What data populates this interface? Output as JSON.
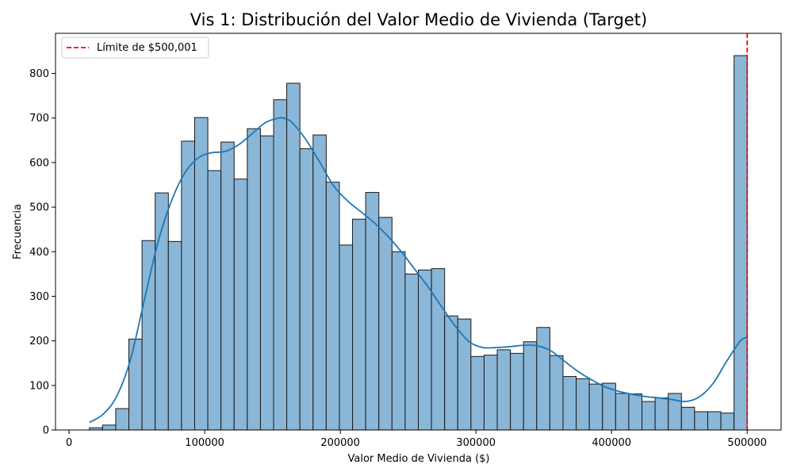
{
  "chart_data": {
    "type": "bar",
    "title": "Vis 1: Distribución del Valor Medio de Vivienda (Target)",
    "xlabel": "Valor Medio de Vivienda ($)",
    "ylabel": "Frecuencia",
    "xlim": [
      -10000,
      525000
    ],
    "ylim": [
      0,
      890
    ],
    "xticks": [
      0,
      100000,
      200000,
      300000,
      400000,
      500000
    ],
    "xtick_labels": [
      "0",
      "100000",
      "200000",
      "300000",
      "400000",
      "500000"
    ],
    "yticks": [
      0,
      100,
      200,
      300,
      400,
      500,
      600,
      700,
      800
    ],
    "ytick_labels": [
      "0",
      "100",
      "200",
      "300",
      "400",
      "500",
      "600",
      "700",
      "800"
    ],
    "bar_color": "#8ab6d8",
    "bar_edge_color": "#1a1a1a",
    "bins": {
      "start": 14999,
      "end": 500001,
      "counts": [
        5,
        11,
        48,
        204,
        425,
        532,
        423,
        648,
        701,
        582,
        646,
        563,
        676,
        660,
        741,
        778,
        631,
        662,
        556,
        415,
        473,
        533,
        477,
        400,
        350,
        359,
        362,
        256,
        249,
        165,
        168,
        180,
        172,
        198,
        230,
        167,
        120,
        115,
        103,
        105,
        82,
        81,
        64,
        72,
        82,
        51,
        41,
        41,
        38,
        840
      ]
    },
    "kde": {
      "color": "#1f77b4",
      "x": [
        14999,
        25000,
        35000,
        45000,
        55000,
        65000,
        75000,
        85000,
        95000,
        105000,
        115000,
        125000,
        135000,
        145000,
        155000,
        160000,
        165000,
        175000,
        185000,
        195000,
        205000,
        215000,
        225000,
        235000,
        245000,
        255000,
        265000,
        275000,
        285000,
        295000,
        305000,
        315000,
        325000,
        335000,
        345000,
        355000,
        365000,
        375000,
        385000,
        395000,
        405000,
        415000,
        425000,
        435000,
        445000,
        455000,
        465000,
        475000,
        485000,
        495000,
        500001
      ],
      "y": [
        17,
        35,
        75,
        155,
        285,
        415,
        510,
        575,
        610,
        622,
        625,
        640,
        665,
        690,
        700,
        698,
        688,
        650,
        600,
        548,
        515,
        490,
        465,
        435,
        400,
        360,
        320,
        275,
        232,
        198,
        185,
        185,
        187,
        190,
        189,
        178,
        155,
        132,
        113,
        97,
        87,
        80,
        75,
        72,
        68,
        64,
        75,
        105,
        155,
        200,
        208
      ]
    },
    "reference_line": {
      "x": 500001,
      "color": "#ff0000",
      "style": "dashed",
      "label": "Límite de $500,001"
    },
    "legend": {
      "placement": "top-left",
      "entries": [
        "Límite de $500,001"
      ]
    }
  }
}
